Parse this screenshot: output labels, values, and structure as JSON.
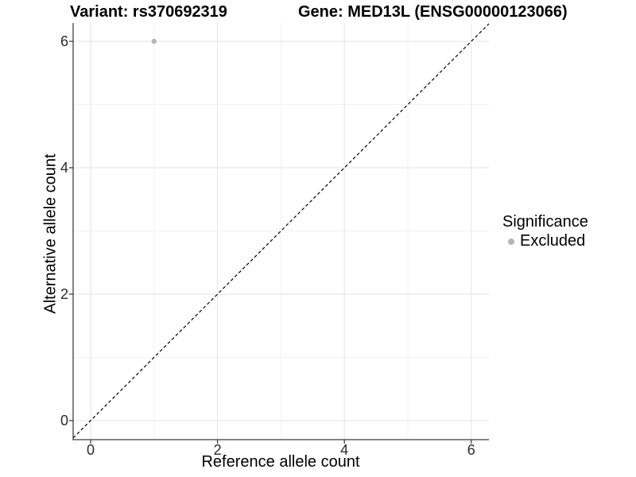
{
  "header": {
    "variant_title": "Variant: rs370692319",
    "gene_title": "Gene: MED13L (ENSG00000123066)"
  },
  "chart_data": {
    "type": "scatter",
    "title_left": "Variant: rs370692319",
    "title_right": "Gene: MED13L (ENSG00000123066)",
    "xlabel": "Reference allele count",
    "ylabel": "Alternative allele count",
    "xlim": [
      -0.3,
      6.3
    ],
    "ylim": [
      -0.3,
      6.3
    ],
    "x_ticks": [
      0,
      2,
      4,
      6
    ],
    "y_ticks": [
      0,
      2,
      4,
      6
    ],
    "x_minor_ticks": [
      1,
      3,
      5
    ],
    "y_minor_ticks": [
      1,
      3,
      5
    ],
    "grid": true,
    "points": [
      {
        "x": 1,
        "y": 6,
        "series": "Excluded"
      }
    ],
    "reference_line": {
      "slope": 1,
      "intercept": 0,
      "style": "dashed",
      "color": "#000000"
    },
    "legend": {
      "position": "right",
      "title": "Significance",
      "entries": [
        {
          "label": "Excluded",
          "color": "#b5b5b5"
        }
      ]
    },
    "colors": {
      "point": "#b5b5b5",
      "grid_major": "#e3e3e3",
      "grid_minor": "#f1f1f1",
      "axis_line": "#3f3f3f",
      "tick_mark": "#3f3f3f",
      "background": "#ffffff"
    }
  }
}
